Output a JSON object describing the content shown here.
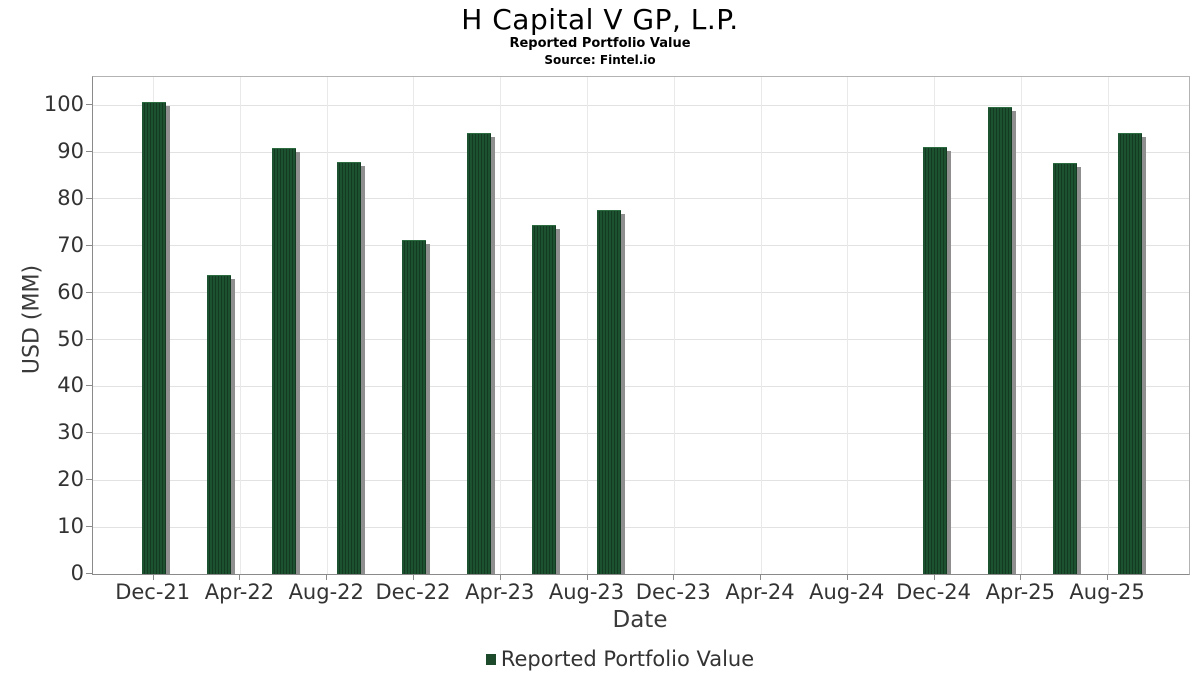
{
  "header": {
    "title": "H Capital V GP, L.P.",
    "subtitle": "Reported Portfolio Value",
    "source": "Source: Fintel.io"
  },
  "chart_data": {
    "type": "bar",
    "title": "H Capital V GP, L.P.",
    "subtitle": "Reported Portfolio Value",
    "source": "Source: Fintel.io",
    "xlabel": "Date",
    "ylabel": "USD (MM)",
    "ylim": [
      0,
      106
    ],
    "y_ticks": [
      0,
      10,
      20,
      30,
      40,
      50,
      60,
      70,
      80,
      90,
      100
    ],
    "x_tick_labels": [
      "Dec-21",
      "Apr-22",
      "Aug-22",
      "Dec-22",
      "Apr-23",
      "Aug-23",
      "Dec-23",
      "Apr-24",
      "Aug-24",
      "Dec-24",
      "Apr-25",
      "Aug-25"
    ],
    "grid": true,
    "legend": {
      "position": "bottom",
      "entries": [
        "Reported Portfolio Value"
      ]
    },
    "bar_color": "#1d5230",
    "series": [
      {
        "name": "Reported Portfolio Value",
        "points": [
          {
            "date": "Dec-21",
            "value": 100.7
          },
          {
            "date": "Mar-22",
            "value": 63.8
          },
          {
            "date": "Jun-22",
            "value": 90.8
          },
          {
            "date": "Sep-22",
            "value": 87.9
          },
          {
            "date": "Dec-22",
            "value": 71.2
          },
          {
            "date": "Mar-23",
            "value": 94.1
          },
          {
            "date": "Jun-23",
            "value": 74.4
          },
          {
            "date": "Sep-23",
            "value": 77.6
          },
          {
            "date": "Dec-24",
            "value": 91.1
          },
          {
            "date": "Mar-25",
            "value": 99.5
          },
          {
            "date": "Jun-25",
            "value": 87.7
          },
          {
            "date": "Sep-25",
            "value": 94.0
          }
        ]
      }
    ]
  },
  "colors": {
    "bar_green": "#1d5230",
    "bar_stripe": "#143a21",
    "shadow_gray": "#8f8f8f",
    "gridline": "#e2e2e2",
    "axis_text": "#333333"
  }
}
